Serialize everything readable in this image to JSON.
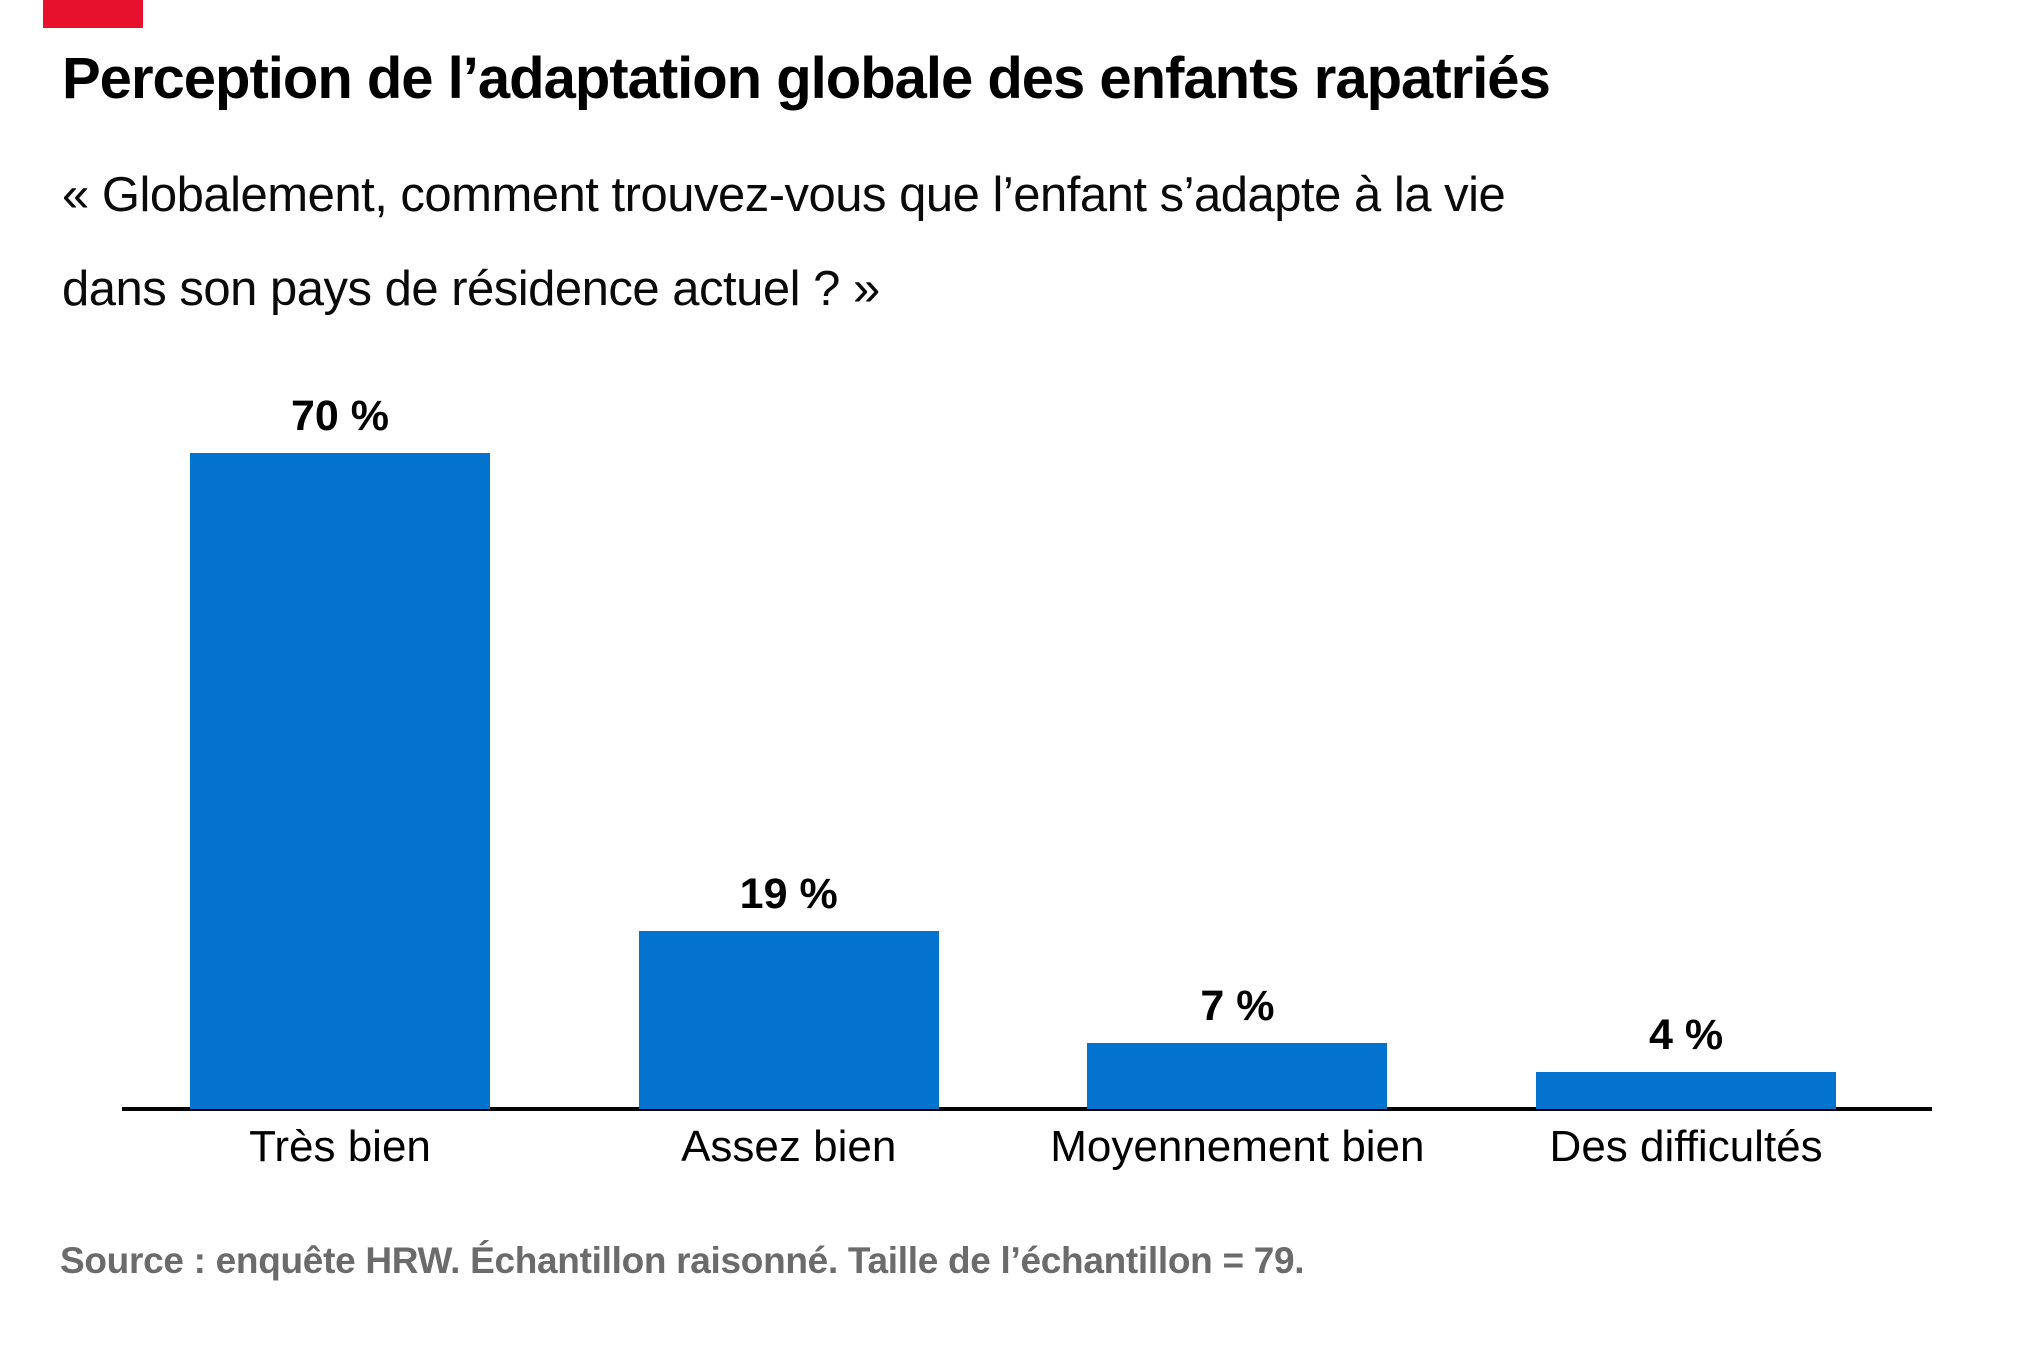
{
  "brand": {
    "mark_color": "#e8112d"
  },
  "header": {
    "title": "Perception de l’adaptation globale des enfants rapatriés",
    "subtitle_line1": "« Globalement, comment trouvez-vous que l’enfant s’adapte à la vie",
    "subtitle_line2": "dans son pays de résidence actuel ? »"
  },
  "chart_data": {
    "type": "bar",
    "title": "Perception de l’adaptation globale des enfants rapatriés",
    "subtitle": "« Globalement, comment trouvez-vous que l’enfant s’adapte à la vie dans son pays de résidence actuel ? »",
    "categories": [
      "Très bien",
      "Assez bien",
      "Moyennement bien",
      "Des difficultés"
    ],
    "values": [
      70,
      19,
      7,
      4
    ],
    "value_labels": [
      "70 %",
      "19 %",
      "7 %",
      "4 %"
    ],
    "unit": "%",
    "ylim": [
      0,
      100
    ],
    "xlabel": "",
    "ylabel": "",
    "grid": false,
    "legend": false,
    "bar_color": "#0473cf",
    "axis_color": "#000000",
    "value_label_color": "#000000"
  },
  "footer": {
    "source": "Source : enquête HRW. Échantillon raisonné. Taille de l’échantillon = 79."
  }
}
